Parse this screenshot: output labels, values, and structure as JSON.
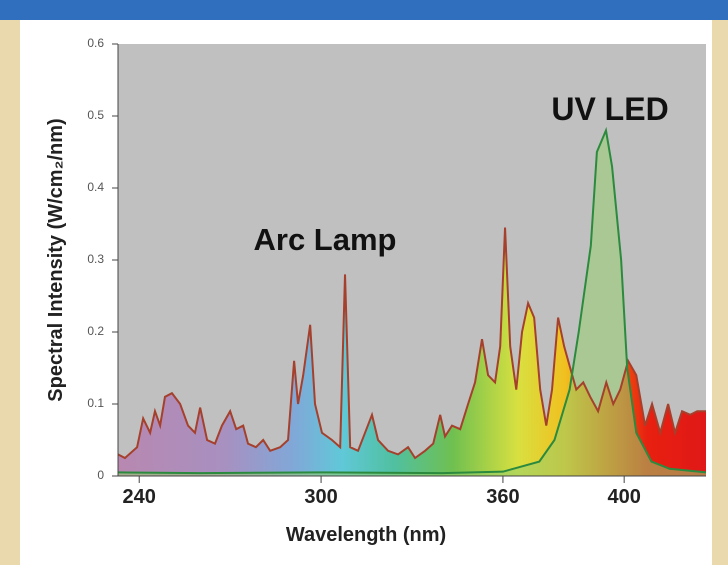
{
  "chart_data": {
    "type": "line",
    "xlabel": "Wavelength (nm)",
    "ylabel": "Spectral Intensity (W/cm₂/nm)",
    "xlim": [
      233,
      427
    ],
    "xticks": [
      240,
      300,
      360,
      400
    ],
    "ylim": [
      0,
      0.6
    ],
    "yticks": [
      0,
      0.1,
      0.2,
      0.3,
      0.4,
      0.5,
      0.6
    ],
    "series": [
      {
        "name": "Arc Lamp",
        "color": "#a5402d",
        "x": [
          233,
          235.3,
          239.3,
          241.3,
          243.6,
          245.2,
          246.9,
          248.5,
          250.8,
          253.5,
          256.1,
          258.4,
          260.1,
          262.4,
          265,
          267.3,
          270,
          272,
          274.3,
          275.9,
          278.5,
          280.9,
          283.2,
          286.5,
          289.1,
          291.1,
          292.4,
          294.1,
          296.4,
          298,
          300.3,
          303.6,
          306.3,
          307.9,
          309.6,
          312.2,
          314.5,
          316.8,
          318.8,
          322.1,
          325.4,
          328.7,
          331,
          334.3,
          337,
          339.3,
          340.9,
          343.2,
          345.9,
          348.5,
          350.8,
          353.1,
          355.1,
          357.4,
          359.1,
          360.7,
          362.4,
          364.4,
          366.3,
          368.3,
          370.3,
          372.3,
          374.3,
          376.2,
          378.2,
          380.2,
          382.2,
          384.2,
          386.5,
          388.8,
          391.4,
          394.1,
          396.4,
          398.7,
          401.3,
          404,
          406.9,
          409.2,
          411.9,
          414.5,
          416.8,
          419.1,
          421.8,
          424.1,
          427
        ],
        "values": [
          0.03,
          0.025,
          0.04,
          0.08,
          0.06,
          0.09,
          0.07,
          0.11,
          0.115,
          0.1,
          0.07,
          0.06,
          0.095,
          0.05,
          0.045,
          0.07,
          0.09,
          0.065,
          0.07,
          0.045,
          0.04,
          0.05,
          0.035,
          0.04,
          0.05,
          0.16,
          0.1,
          0.14,
          0.21,
          0.1,
          0.06,
          0.05,
          0.04,
          0.28,
          0.04,
          0.035,
          0.06,
          0.085,
          0.05,
          0.035,
          0.03,
          0.04,
          0.025,
          0.035,
          0.045,
          0.085,
          0.055,
          0.07,
          0.065,
          0.1,
          0.13,
          0.19,
          0.14,
          0.13,
          0.18,
          0.345,
          0.18,
          0.12,
          0.2,
          0.24,
          0.22,
          0.12,
          0.07,
          0.12,
          0.22,
          0.18,
          0.15,
          0.12,
          0.13,
          0.11,
          0.09,
          0.13,
          0.1,
          0.12,
          0.16,
          0.14,
          0.07,
          0.1,
          0.06,
          0.1,
          0.06,
          0.09,
          0.085,
          0.09,
          0.09
        ]
      },
      {
        "name": "UV LED",
        "color": "#2b8a3e",
        "x": [
          233,
          260,
          300,
          340,
          360,
          372,
          377,
          382,
          385,
          389,
          391,
          394,
          396,
          399,
          401,
          404,
          409,
          415,
          427
        ],
        "values": [
          0.005,
          0.004,
          0.005,
          0.004,
          0.006,
          0.02,
          0.05,
          0.12,
          0.2,
          0.32,
          0.45,
          0.48,
          0.43,
          0.3,
          0.15,
          0.06,
          0.02,
          0.01,
          0.005
        ]
      }
    ]
  }
}
